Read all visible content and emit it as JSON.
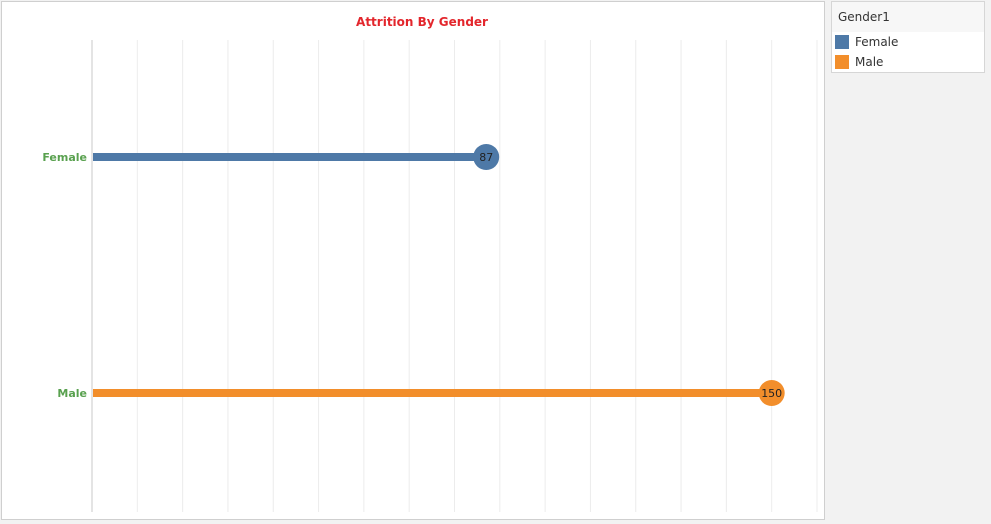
{
  "chart_data": {
    "type": "bar",
    "title": "Attrition By Gender",
    "categories": [
      "Female",
      "Male"
    ],
    "values": [
      87,
      150
    ],
    "xlim": [
      0,
      160
    ],
    "grid": true,
    "legend": {
      "title": "Gender1",
      "placement": "right",
      "items": [
        {
          "label": "Female",
          "color": "#4e79a7"
        },
        {
          "label": "Male",
          "color": "#f28e2b"
        }
      ]
    }
  },
  "colors": {
    "title": "#e3262c",
    "category_labels": "#59a14f",
    "Female": "#4e79a7",
    "Male": "#f28e2b",
    "data_label_text": "#222222",
    "gridline": "#ececec",
    "axis": "#c8c8c8"
  }
}
